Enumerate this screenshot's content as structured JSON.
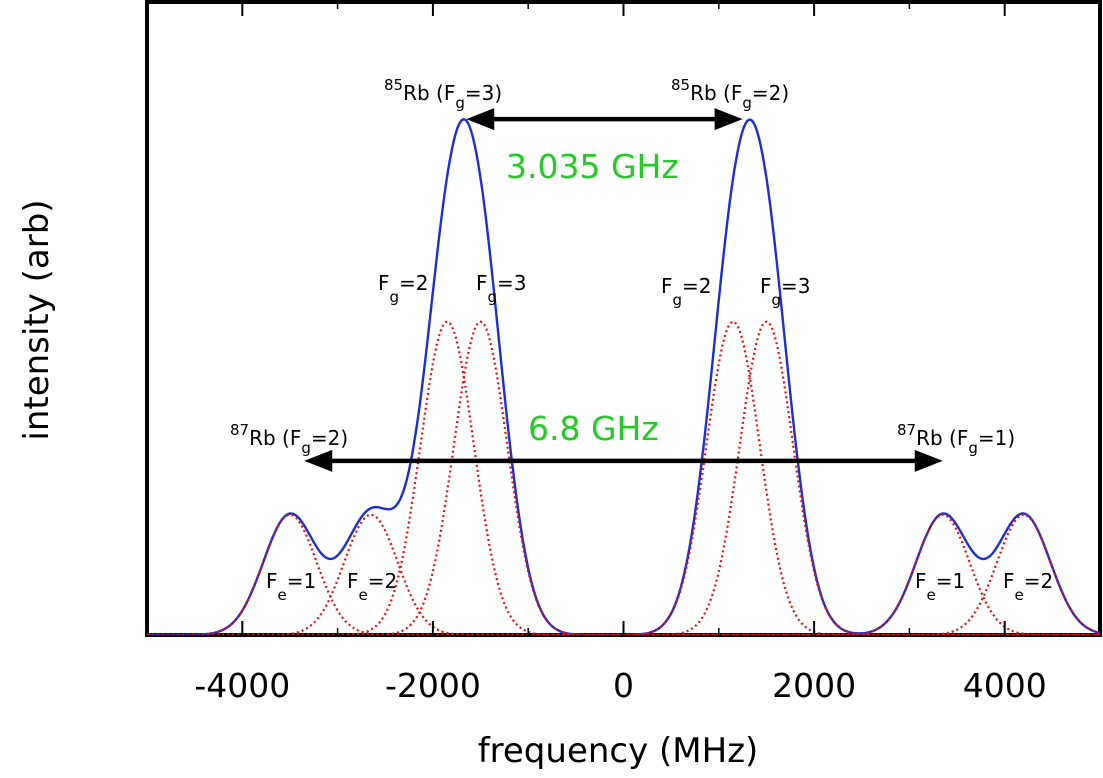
{
  "chart_data": {
    "type": "line",
    "xlabel": "frequency (MHz)",
    "ylabel": "intensity (arb)",
    "xlim": [
      -5000,
      5000
    ],
    "ylim": [
      0,
      1.0
    ],
    "xticks": [
      "-4000",
      "-2000",
      "0",
      "2000",
      "4000"
    ],
    "grid": false,
    "components_sigma_mhz": 280,
    "series": [
      {
        "name": "total",
        "style": "solid",
        "color": "#1a2fd4",
        "peaks": [
          {
            "center": -3500,
            "height": 0.19
          },
          {
            "center": -2650,
            "height": 0.19
          },
          {
            "center": -1850,
            "height": 0.495
          },
          {
            "center": -1500,
            "height": 0.495
          },
          {
            "center": 1150,
            "height": 0.495
          },
          {
            "center": 1500,
            "height": 0.495
          },
          {
            "center": 3350,
            "height": 0.19
          },
          {
            "center": 4200,
            "height": 0.19
          }
        ]
      },
      {
        "name": "components",
        "style": "dotted",
        "color": "#e01010",
        "peaks": [
          {
            "center": -3500,
            "height": 0.19
          },
          {
            "center": -2650,
            "height": 0.19
          },
          {
            "center": -1850,
            "height": 0.495
          },
          {
            "center": -1500,
            "height": 0.495
          },
          {
            "center": 1150,
            "height": 0.495
          },
          {
            "center": 1500,
            "height": 0.495
          },
          {
            "center": 3350,
            "height": 0.19
          },
          {
            "center": 4200,
            "height": 0.19
          }
        ]
      }
    ],
    "annotations": {
      "rb85_fg3": {
        "pre": "85",
        "main": "Rb (F",
        "sub": "g",
        "post": "=3)"
      },
      "rb85_fg2": {
        "pre": "85",
        "main": "Rb (F",
        "sub": "g",
        "post": "=2)"
      },
      "rb87_fg2": {
        "pre": "87",
        "main": "Rb (F",
        "sub": "g",
        "post": "=2)"
      },
      "rb87_fg1": {
        "pre": "87",
        "main": "Rb (F",
        "sub": "g",
        "post": "=1)"
      },
      "split_85": {
        "text": "3.035 GHz",
        "color": "#22cc22"
      },
      "split_87": {
        "text": "6.8 GHz",
        "color": "#22cc22"
      },
      "fg_labels": [
        {
          "main": "F",
          "sub": "g",
          "post": "=2"
        },
        {
          "main": "F",
          "sub": "g",
          "post": "=3"
        },
        {
          "main": "F",
          "sub": "g",
          "post": "=2"
        },
        {
          "main": "F",
          "sub": "g",
          "post": "=3"
        }
      ],
      "fe_labels": [
        {
          "main": "F",
          "sub": "e",
          "post": "=1"
        },
        {
          "main": "F",
          "sub": "e",
          "post": "=2"
        },
        {
          "main": "F",
          "sub": "e",
          "post": "=1"
        },
        {
          "main": "F",
          "sub": "e",
          "post": "=2"
        }
      ]
    },
    "arrows": [
      {
        "name": "split-85-arrow",
        "from": -1650,
        "to": 1250,
        "y": 0.815
      },
      {
        "name": "split-87-arrow",
        "from": -3350,
        "to": 3350,
        "y": 0.275
      }
    ]
  }
}
